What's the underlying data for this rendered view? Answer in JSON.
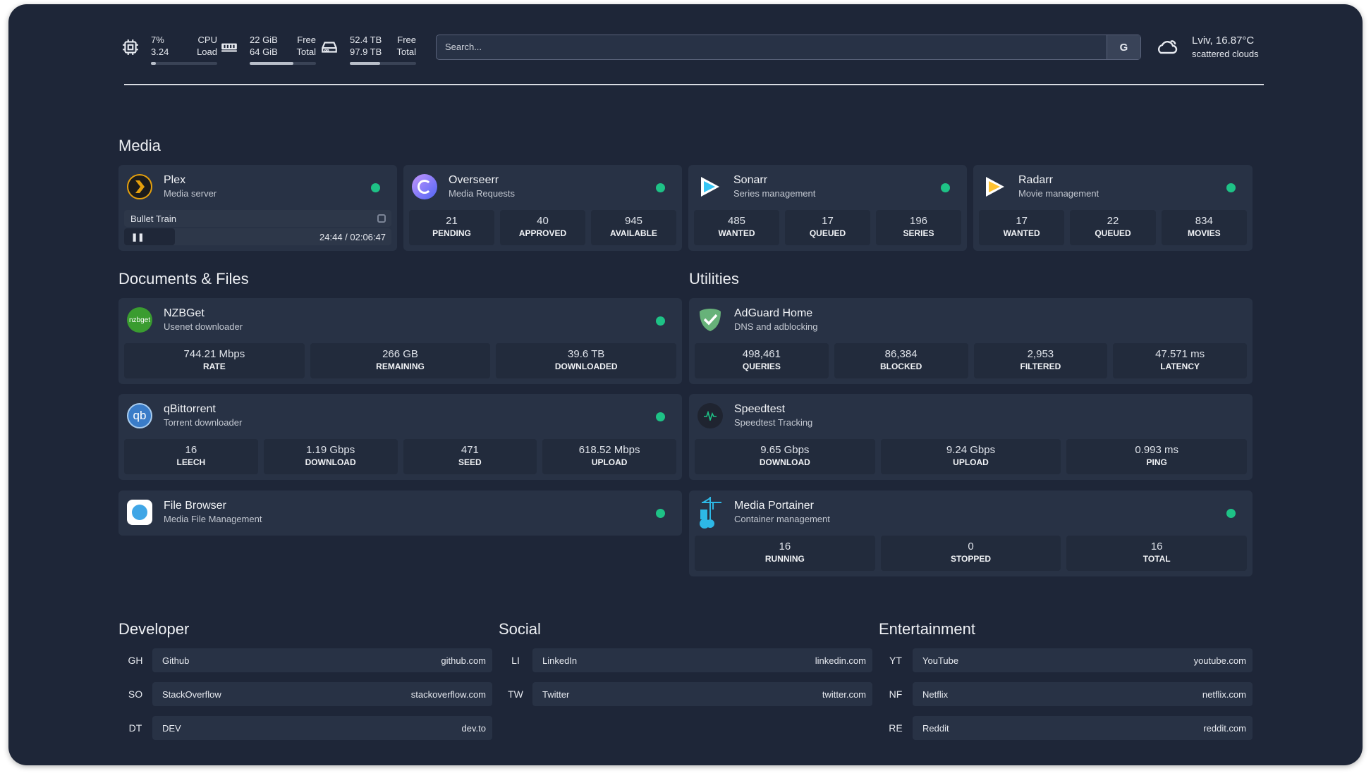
{
  "topbar": {
    "cpu": {
      "icon": "cpu-icon",
      "v1": "7%",
      "v2": "3.24",
      "l1": "CPU",
      "l2": "Load",
      "usage_pct": 7
    },
    "ram": {
      "icon": "memory-icon",
      "v1": "22 GiB",
      "v2": "64 GiB",
      "l1": "Free",
      "l2": "Total",
      "usage_pct": 66
    },
    "disk": {
      "icon": "hard-drive-icon",
      "v1": "52.4 TB",
      "v2": "97.9 TB",
      "l1": "Free",
      "l2": "Total",
      "usage_pct": 46
    },
    "search": {
      "placeholder": "Search...",
      "provider": "G"
    },
    "weather": {
      "icon": "cloud-icon",
      "location": "Lviv, 16.87°C",
      "condition": "scattered clouds"
    }
  },
  "colors": {
    "background": "#1e2638",
    "card": "#283245",
    "status": "#1ec286"
  },
  "sections": {
    "media": "Media",
    "docs": "Documents & Files",
    "utilities": "Utilities",
    "developer": "Developer",
    "social": "Social",
    "entertainment": "Entertainment"
  },
  "services": {
    "plex": {
      "name": "Plex",
      "desc": "Media server",
      "icon": "plex-icon",
      "now_playing": {
        "title": "Bullet Train",
        "time": "24:44 / 02:06:47",
        "progress_pct": 19
      }
    },
    "overseerr": {
      "name": "Overseerr",
      "desc": "Media Requests",
      "icon": "overseerr-icon",
      "stats": [
        {
          "v": "21",
          "l": "PENDING"
        },
        {
          "v": "40",
          "l": "APPROVED"
        },
        {
          "v": "945",
          "l": "AVAILABLE"
        }
      ]
    },
    "sonarr": {
      "name": "Sonarr",
      "desc": "Series management",
      "icon": "sonarr-icon",
      "stats": [
        {
          "v": "485",
          "l": "WANTED"
        },
        {
          "v": "17",
          "l": "QUEUED"
        },
        {
          "v": "196",
          "l": "SERIES"
        }
      ]
    },
    "radarr": {
      "name": "Radarr",
      "desc": "Movie management",
      "icon": "radarr-icon",
      "stats": [
        {
          "v": "17",
          "l": "WANTED"
        },
        {
          "v": "22",
          "l": "QUEUED"
        },
        {
          "v": "834",
          "l": "MOVIES"
        }
      ]
    },
    "nzbget": {
      "name": "NZBGet",
      "desc": "Usenet downloader",
      "icon": "nzbget-icon",
      "logo_text": "nzbget",
      "stats": [
        {
          "v": "744.21 Mbps",
          "l": "RATE"
        },
        {
          "v": "266 GB",
          "l": "REMAINING"
        },
        {
          "v": "39.6 TB",
          "l": "DOWNLOADED"
        }
      ]
    },
    "adguard": {
      "name": "AdGuard Home",
      "desc": "DNS and adblocking",
      "icon": "adguard-shield-icon",
      "stats": [
        {
          "v": "498,461",
          "l": "QUERIES"
        },
        {
          "v": "86,384",
          "l": "BLOCKED"
        },
        {
          "v": "2,953",
          "l": "FILTERED"
        },
        {
          "v": "47.571 ms",
          "l": "LATENCY"
        }
      ]
    },
    "qbittorrent": {
      "name": "qBittorrent",
      "desc": "Torrent downloader",
      "icon": "qbittorrent-icon",
      "logo_text": "qb",
      "stats": [
        {
          "v": "16",
          "l": "LEECH"
        },
        {
          "v": "1.19 Gbps",
          "l": "DOWNLOAD"
        },
        {
          "v": "471",
          "l": "SEED"
        },
        {
          "v": "618.52 Mbps",
          "l": "UPLOAD"
        }
      ]
    },
    "speedtest": {
      "name": "Speedtest",
      "desc": "Speedtest Tracking",
      "icon": "speedtest-icon",
      "stats": [
        {
          "v": "9.65 Gbps",
          "l": "DOWNLOAD"
        },
        {
          "v": "9.24 Gbps",
          "l": "UPLOAD"
        },
        {
          "v": "0.993 ms",
          "l": "PING"
        }
      ]
    },
    "filebrowser": {
      "name": "File Browser",
      "desc": "Media File Management",
      "icon": "file-browser-icon"
    },
    "portainer": {
      "name": "Media Portainer",
      "desc": "Container management",
      "icon": "portainer-icon",
      "stats": [
        {
          "v": "16",
          "l": "RUNNING"
        },
        {
          "v": "0",
          "l": "STOPPED"
        },
        {
          "v": "16",
          "l": "TOTAL"
        }
      ]
    }
  },
  "bookmarks": {
    "developer": [
      {
        "abbr": "GH",
        "name": "Github",
        "url": "github.com"
      },
      {
        "abbr": "SO",
        "name": "StackOverflow",
        "url": "stackoverflow.com"
      },
      {
        "abbr": "DT",
        "name": "DEV",
        "url": "dev.to"
      }
    ],
    "social": [
      {
        "abbr": "LI",
        "name": "LinkedIn",
        "url": "linkedin.com"
      },
      {
        "abbr": "TW",
        "name": "Twitter",
        "url": "twitter.com"
      }
    ],
    "entertainment": [
      {
        "abbr": "YT",
        "name": "YouTube",
        "url": "youtube.com"
      },
      {
        "abbr": "NF",
        "name": "Netflix",
        "url": "netflix.com"
      },
      {
        "abbr": "RE",
        "name": "Reddit",
        "url": "reddit.com"
      }
    ]
  }
}
